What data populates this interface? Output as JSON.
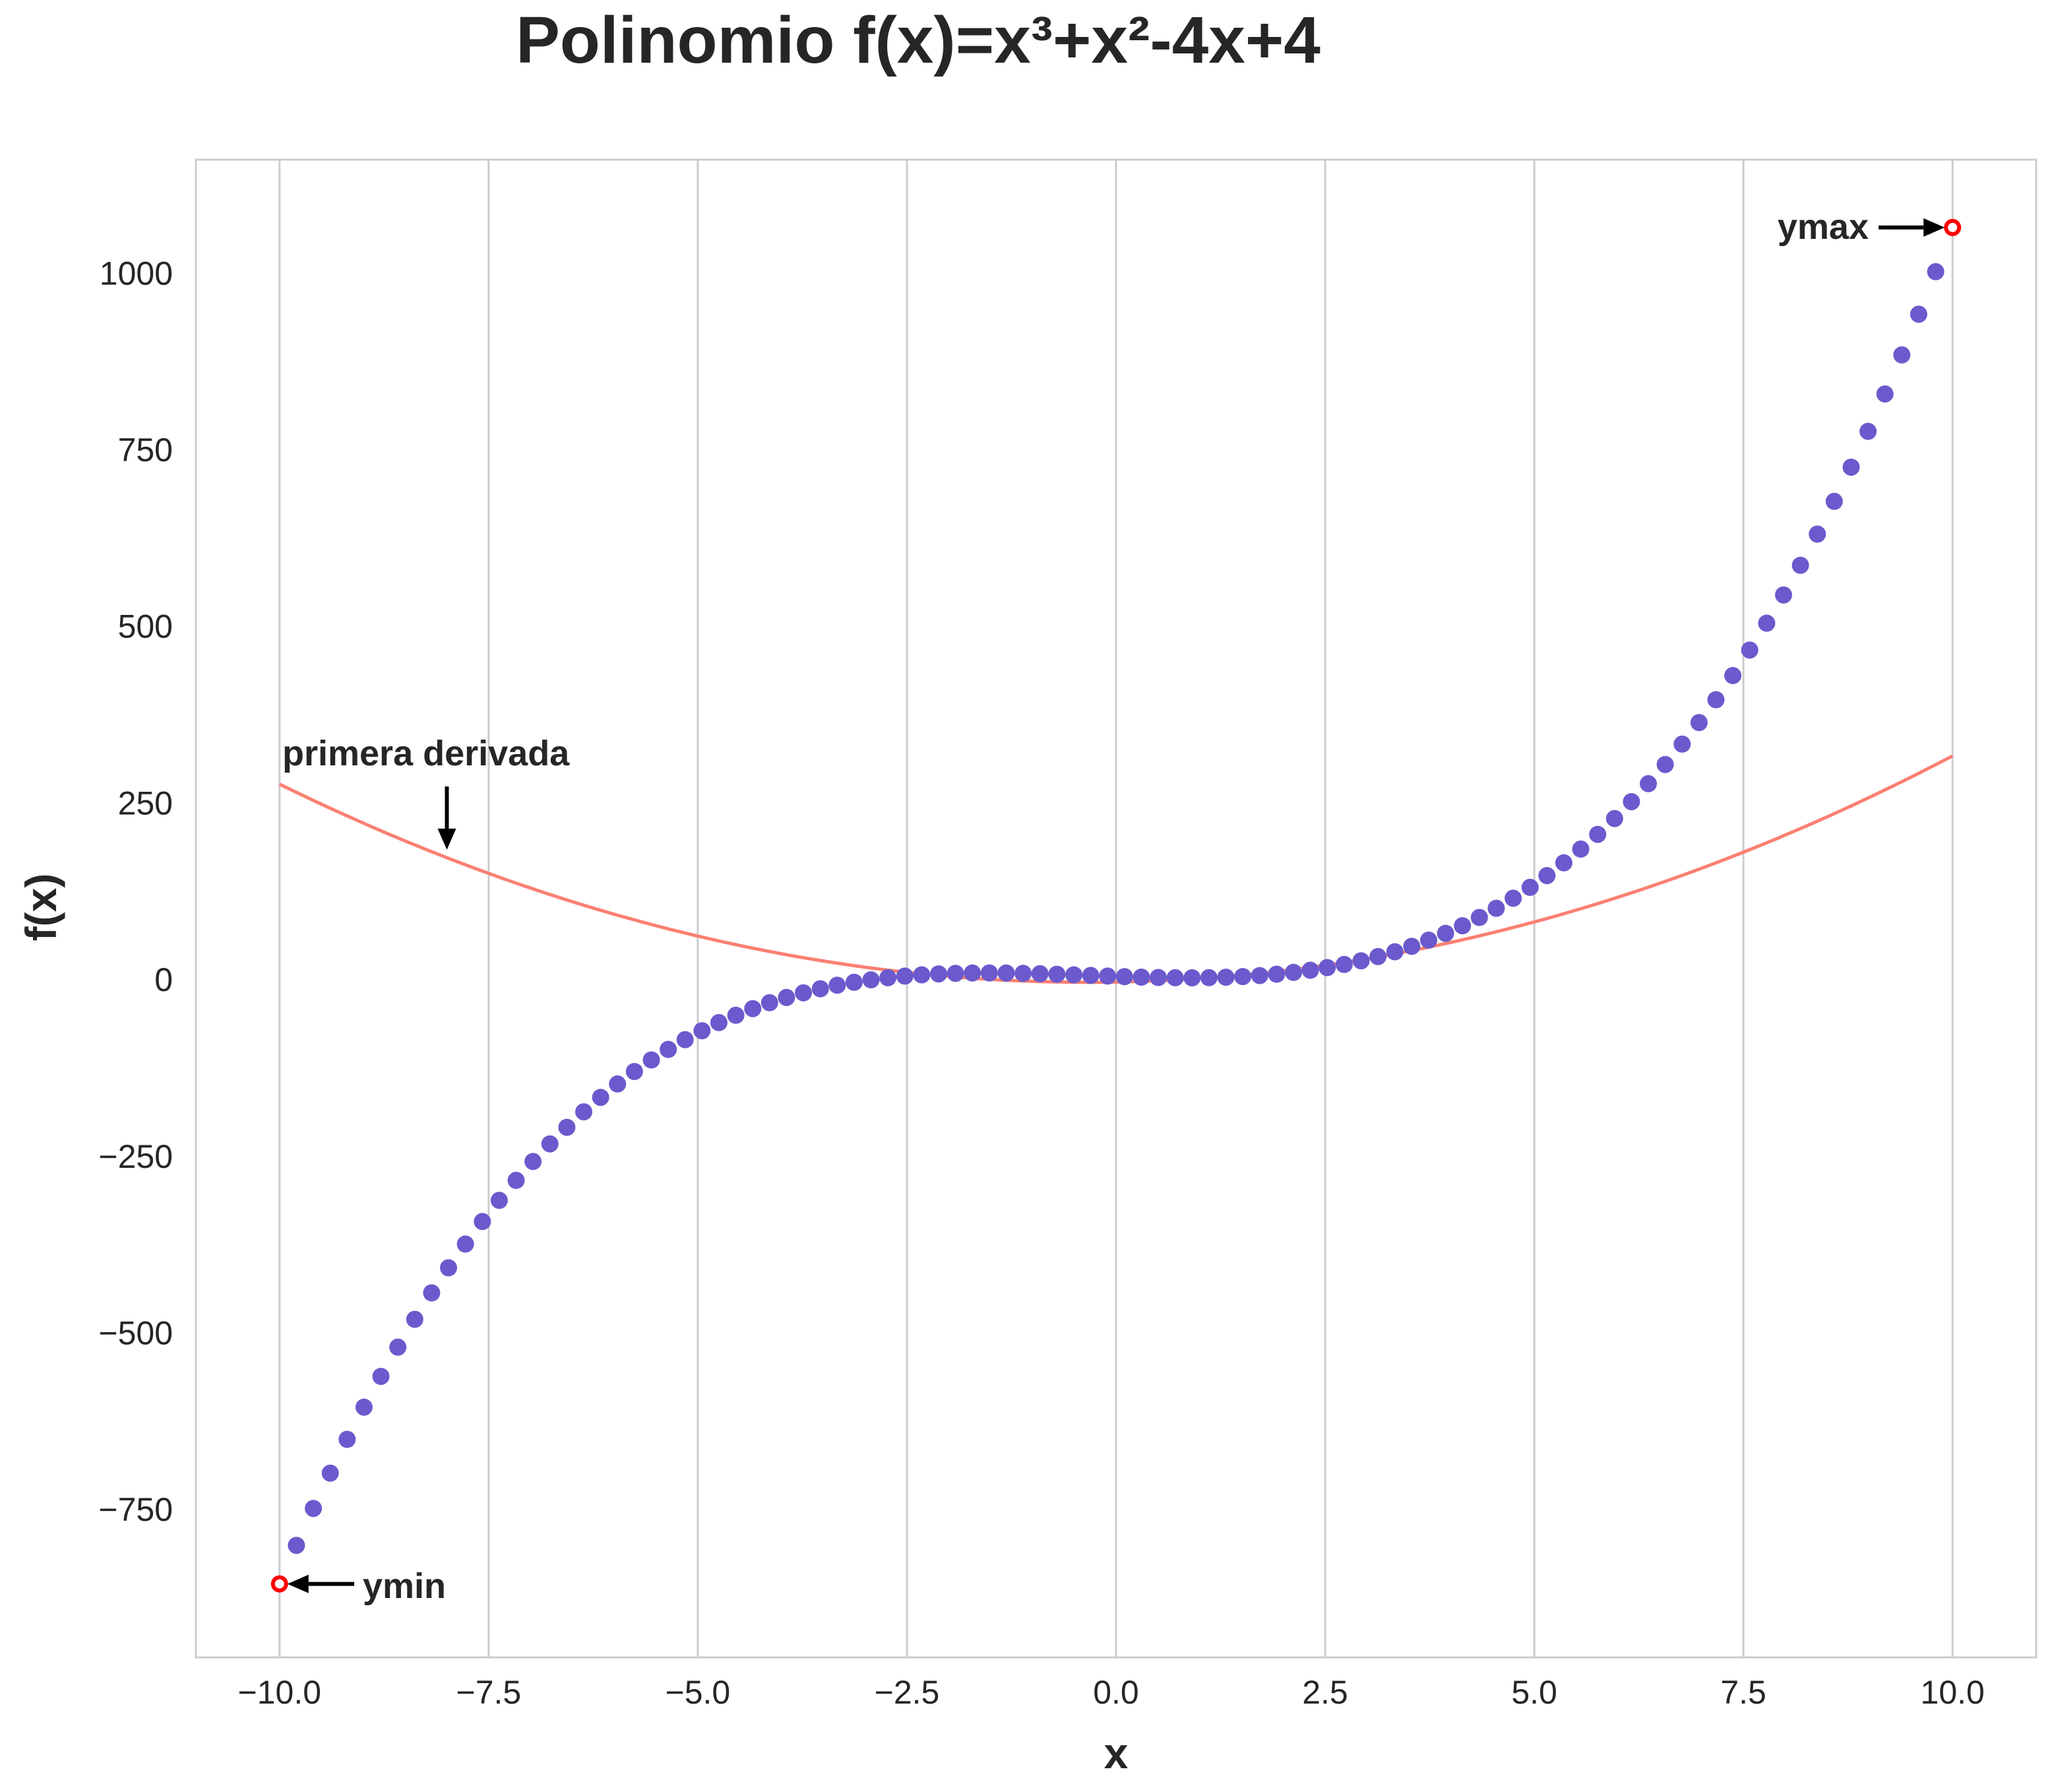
{
  "chart_data": {
    "type": "scatter",
    "title": "Polinomio f(x)=x³+x²-4x+4",
    "xlabel": "x",
    "ylabel": "f(x)",
    "xlim": [
      -11,
      11
    ],
    "ylim": [
      -960,
      1160
    ],
    "grid": "vertical",
    "x_ticks": [
      -10.0,
      -7.5,
      -5.0,
      -2.5,
      0.0,
      2.5,
      5.0,
      7.5,
      10.0
    ],
    "x_tick_labels": [
      "−10.0",
      "−7.5",
      "−5.0",
      "−2.5",
      "0.0",
      "2.5",
      "5.0",
      "7.5",
      "10.0"
    ],
    "y_ticks": [
      1000,
      750,
      500,
      250,
      0,
      -250,
      -500,
      -750
    ],
    "y_tick_labels": [
      "1000",
      "750",
      "500",
      "250",
      "0",
      "−250",
      "−500",
      "−750"
    ],
    "series": [
      {
        "kind": "scatter",
        "color": "#6a5acd",
        "function": "x^3+x^2-4x+4",
        "x_range": [
          -10,
          10
        ],
        "n_points": 100
      },
      {
        "name": "primera derivada",
        "kind": "line",
        "color": "#fa8072",
        "function": "3x^2+2x-4",
        "x_range": [
          -10,
          10
        ]
      }
    ],
    "highlight_points": [
      {
        "name": "ymin",
        "x": -10,
        "y": -856,
        "color": "#ff0000"
      },
      {
        "name": "ymax",
        "x": 10,
        "y": 1064,
        "color": "#ff0000"
      }
    ],
    "annotations": [
      {
        "text": "primera derivada",
        "target_x": -8,
        "target_y": 172
      },
      {
        "text": "ymin",
        "target_x": -10,
        "target_y": -856
      },
      {
        "text": "ymax",
        "target_x": 10,
        "target_y": 1064
      }
    ]
  },
  "colors": {
    "background": "#ffffff",
    "grid": "#cccccc",
    "spine": "#cccccc",
    "text": "#262626",
    "arrow": "#000000"
  }
}
